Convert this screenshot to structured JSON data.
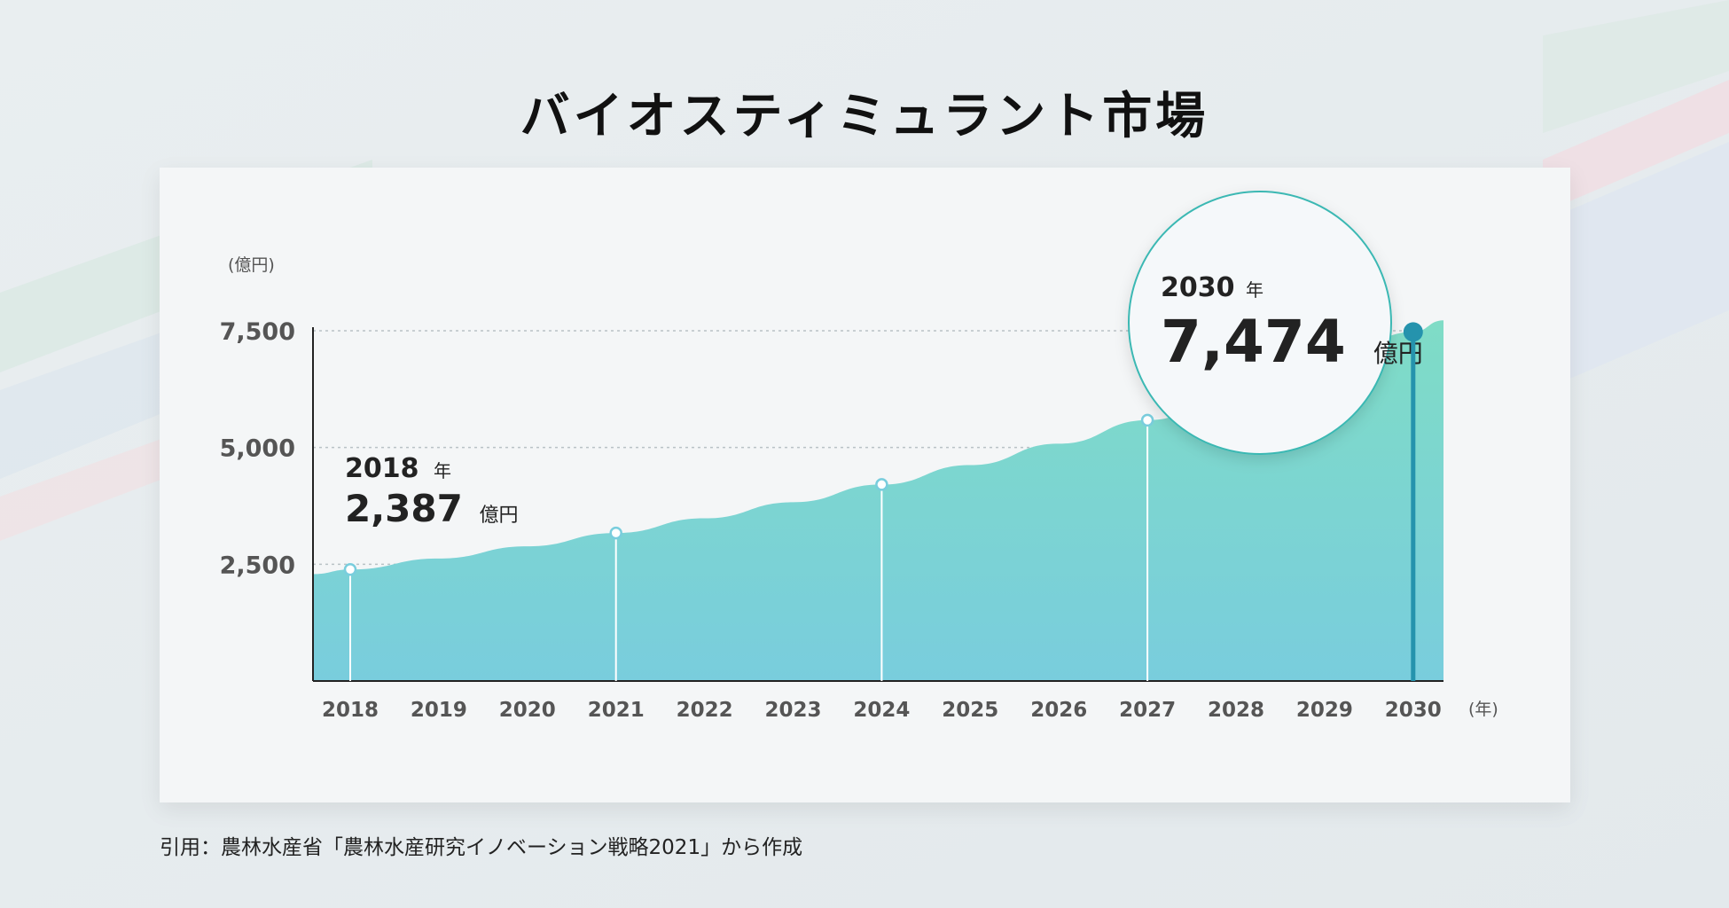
{
  "title": "バイオスティミュラント市場",
  "source": "引用：農林水産省「農林水産研究イノベーション戦略2021」から作成",
  "colors": {
    "area_top": "#7fdcc6",
    "area_bottom": "#79cddd",
    "accent": "#2593ad",
    "circle_border": "#3bb8b3"
  },
  "chart_data": {
    "type": "area",
    "ylabel": "(億円)",
    "xlabel": "(年)",
    "x": [
      2018,
      2019,
      2020,
      2021,
      2022,
      2023,
      2024,
      2025,
      2026,
      2027,
      2028,
      2029,
      2030
    ],
    "x_tick_labels": [
      "2018",
      "2019",
      "2020",
      "2021",
      "2022",
      "2023",
      "2024",
      "2025",
      "2026",
      "2027",
      "2028",
      "2029",
      "2030"
    ],
    "series": [
      {
        "values": [
          2387,
          2623,
          2883,
          3169,
          3483,
          3828,
          4207,
          4623,
          5081,
          5584,
          6137,
          6745,
          7474
        ]
      }
    ],
    "ylim": [
      0,
      7500
    ],
    "y_ticks": [
      2500,
      5000,
      7500
    ],
    "y_tick_labels": [
      "2,500",
      "5,000",
      "7,500"
    ],
    "marker_years": [
      2018,
      2021,
      2024,
      2027,
      2030
    ],
    "grid": true,
    "annotations": [
      {
        "year_label": "2018",
        "year_unit": "年",
        "value_label": "2,387",
        "value_unit": "億円"
      },
      {
        "year_label": "2030",
        "year_unit": "年",
        "value_label": "7,474",
        "value_unit": "億円"
      }
    ]
  }
}
